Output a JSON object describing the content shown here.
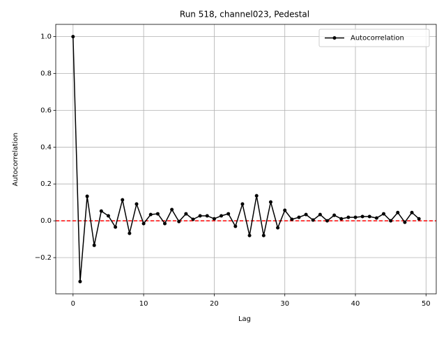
{
  "chart_data": {
    "type": "line",
    "title": "Run 518, channel023, Pedestal",
    "x_label": "Lag",
    "y_label": "Autocorrelation",
    "x": [
      0,
      1,
      2,
      3,
      4,
      5,
      6,
      7,
      8,
      9,
      10,
      11,
      12,
      13,
      14,
      15,
      16,
      17,
      18,
      19,
      20,
      21,
      22,
      23,
      24,
      25,
      26,
      27,
      28,
      29,
      30,
      31,
      32,
      33,
      34,
      35,
      36,
      37,
      38,
      39,
      40,
      41,
      42,
      43,
      44,
      45,
      46,
      47,
      48,
      49
    ],
    "series": [
      {
        "name": "Autocorrelation",
        "color": "#000000",
        "values": [
          1.0,
          -0.33,
          0.133,
          -0.133,
          0.053,
          0.027,
          -0.034,
          0.114,
          -0.068,
          0.091,
          -0.015,
          0.034,
          0.038,
          -0.015,
          0.061,
          -0.004,
          0.038,
          0.008,
          0.027,
          0.027,
          0.011,
          0.027,
          0.038,
          -0.03,
          0.091,
          -0.08,
          0.136,
          -0.08,
          0.102,
          -0.038,
          0.057,
          0.008,
          0.019,
          0.034,
          0.004,
          0.034,
          0.0,
          0.03,
          0.011,
          0.019,
          0.019,
          0.023,
          0.023,
          0.015,
          0.038,
          0.0,
          0.045,
          -0.008,
          0.045,
          0.011
        ]
      }
    ],
    "reference_line": {
      "value": 0,
      "color": "#ff0000"
    },
    "xlim": [
      -2.45,
      51.45
    ],
    "xticks": [
      0,
      10,
      20,
      30,
      40,
      50
    ],
    "ylim": [
      -0.3965,
      1.0665
    ],
    "yticks": [
      {
        "value": -0.2,
        "label": "−0.2"
      },
      {
        "value": 0,
        "label": "0.0"
      },
      {
        "value": 0.2,
        "label": "0.2"
      },
      {
        "value": 0.4,
        "label": "0.4"
      },
      {
        "value": 0.6,
        "label": "0.6"
      },
      {
        "value": 0.8,
        "label": "0.8"
      },
      {
        "value": 1.0,
        "label": "1.0"
      }
    ],
    "grid": true,
    "legend": "upper right"
  }
}
